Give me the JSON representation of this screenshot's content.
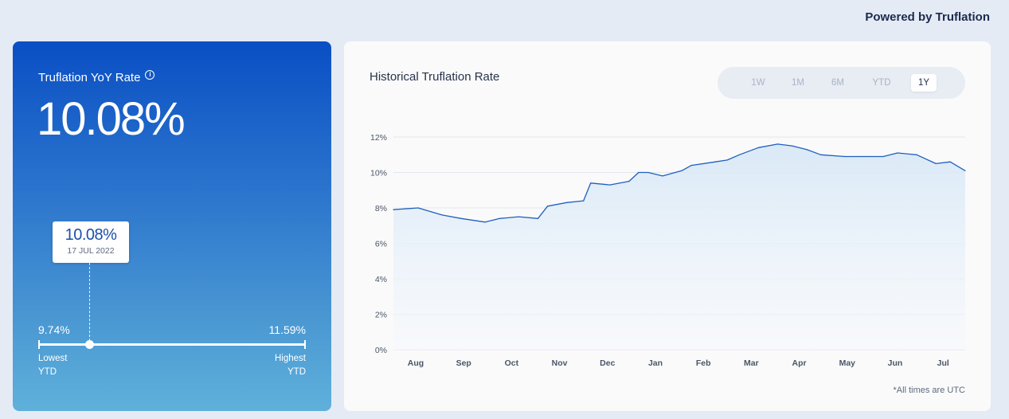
{
  "header": {
    "powered_by": "Powered by Truflation"
  },
  "rate_card": {
    "title": "Truflation YoY Rate",
    "info_icon": "info-circle-icon",
    "value": "10.08%",
    "tooltip": {
      "value": "10.08%",
      "date": "17 JUL 2022"
    },
    "range": {
      "low_value": "9.74%",
      "low_label_1": "Lowest",
      "low_label_2": "YTD",
      "high_value": "11.59%",
      "high_label_1": "Highest",
      "high_label_2": "YTD",
      "current_fraction": 0.19
    }
  },
  "history": {
    "title": "Historical Truflation Rate",
    "tabs": [
      {
        "label": "1W",
        "active": false
      },
      {
        "label": "1M",
        "active": false
      },
      {
        "label": "6M",
        "active": false
      },
      {
        "label": "YTD",
        "active": false
      },
      {
        "label": "1Y",
        "active": true
      }
    ],
    "footnote": "*All times are UTC"
  },
  "colors": {
    "line": "#1f5fc0",
    "fill": "#dcebf7",
    "grid": "#e2e6ec",
    "axis_text": "#4a5568"
  },
  "chart_data": {
    "type": "area",
    "title": "",
    "xlabel": "",
    "ylabel": "",
    "ylim": [
      0,
      12
    ],
    "yticks": [
      "0%",
      "2%",
      "4%",
      "6%",
      "8%",
      "10%",
      "12%"
    ],
    "xticks": [
      "Aug",
      "Sep",
      "Oct",
      "Nov",
      "Dec",
      "Jan",
      "Feb",
      "Mar",
      "Apr",
      "May",
      "Jun",
      "Jul"
    ],
    "grid": true,
    "series": [
      {
        "x": [
          0,
          0.5,
          1.0,
          1.4,
          1.9,
          2.2,
          2.6,
          3.0,
          3.2,
          3.6,
          3.95,
          4.1,
          4.5,
          4.9,
          5.1,
          5.3,
          5.6,
          6.0,
          6.2,
          6.7,
          6.95,
          7.2,
          7.6,
          8.0,
          8.3,
          8.6,
          8.9,
          9.4,
          9.8,
          10.2,
          10.5,
          10.9,
          11.3,
          11.6,
          11.8
        ],
        "y": [
          7.9,
          8.0,
          7.6,
          7.4,
          7.2,
          7.4,
          7.5,
          7.4,
          8.1,
          8.3,
          8.4,
          9.4,
          9.3,
          9.5,
          10.0,
          10.0,
          9.8,
          10.1,
          10.4,
          10.6,
          10.7,
          11.0,
          11.4,
          11.6,
          11.5,
          11.3,
          11.0,
          10.9,
          10.9,
          10.9,
          11.1,
          11.0,
          10.5,
          10.6,
          10.1
        ]
      }
    ]
  }
}
